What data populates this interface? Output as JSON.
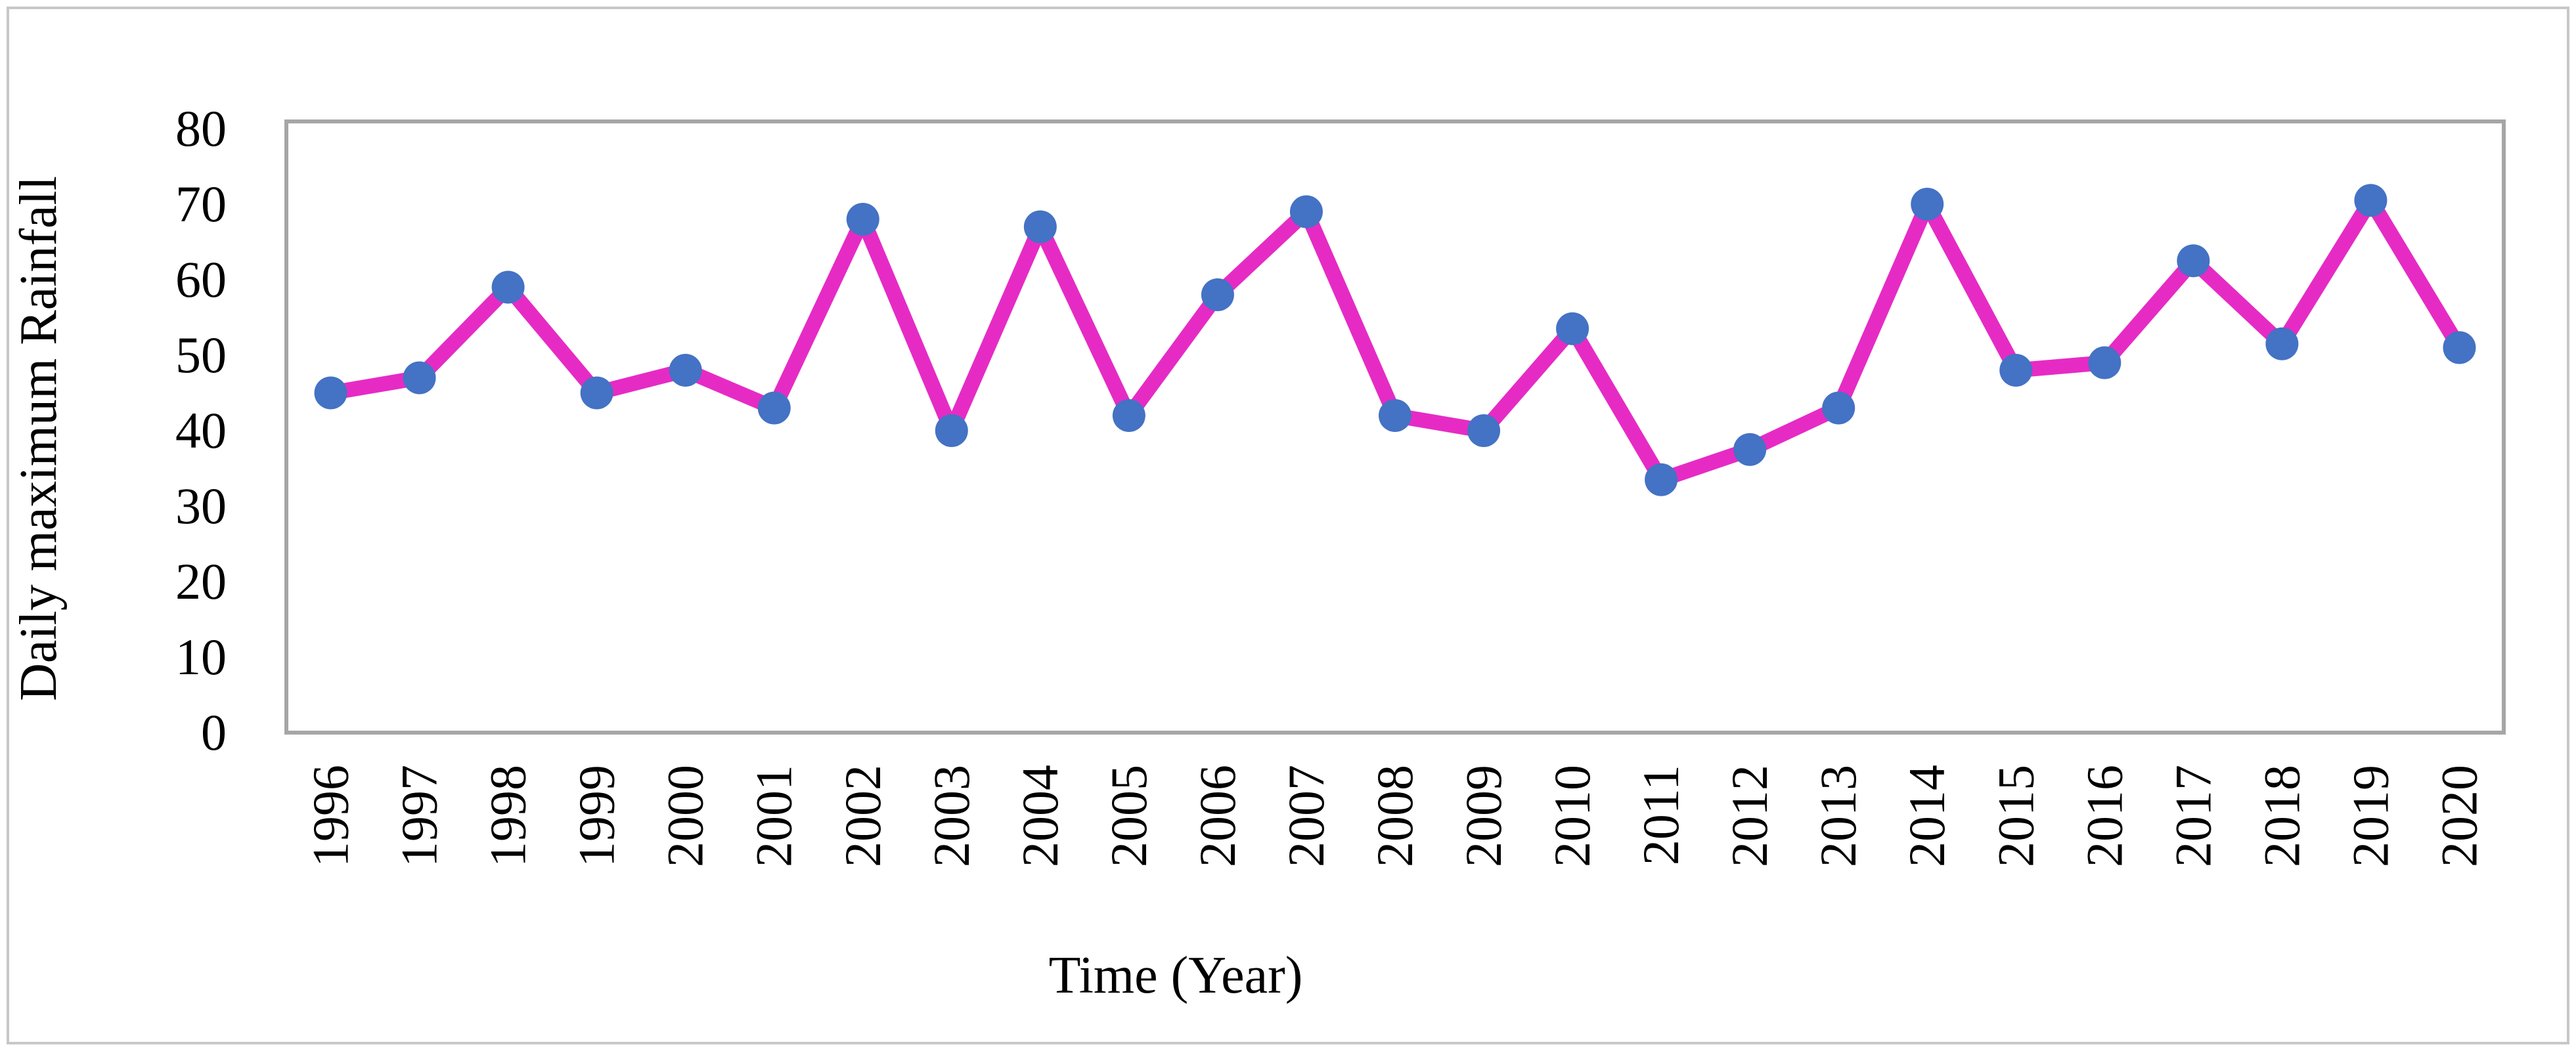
{
  "chart_data": {
    "type": "line",
    "title": "",
    "xlabel": "Time (Year)",
    "ylabel": "Daily maximum Rainfall",
    "categories": [
      "1996",
      "1997",
      "1998",
      "1999",
      "2000",
      "2001",
      "2002",
      "2003",
      "2004",
      "2005",
      "2006",
      "2007",
      "2008",
      "2009",
      "2010",
      "2011",
      "2012",
      "2013",
      "2014",
      "2015",
      "2016",
      "2017",
      "2018",
      "2019",
      "2020"
    ],
    "values": [
      45,
      47,
      59,
      45,
      48,
      43,
      68,
      40,
      67,
      42,
      58,
      69,
      42,
      40,
      53.5,
      33.5,
      37.5,
      43,
      70,
      48,
      49,
      62.5,
      51.5,
      70.5,
      51
    ],
    "ylim": [
      0,
      80
    ],
    "ytick_step": 10,
    "grid": false,
    "legend": "none",
    "line_color": "#E62BC5",
    "marker_color": "#4472C4",
    "marker_shape": "circle",
    "axis_color": "#A6A6A6",
    "frame_color": "#C8C8C8",
    "text_color": "#000000"
  }
}
